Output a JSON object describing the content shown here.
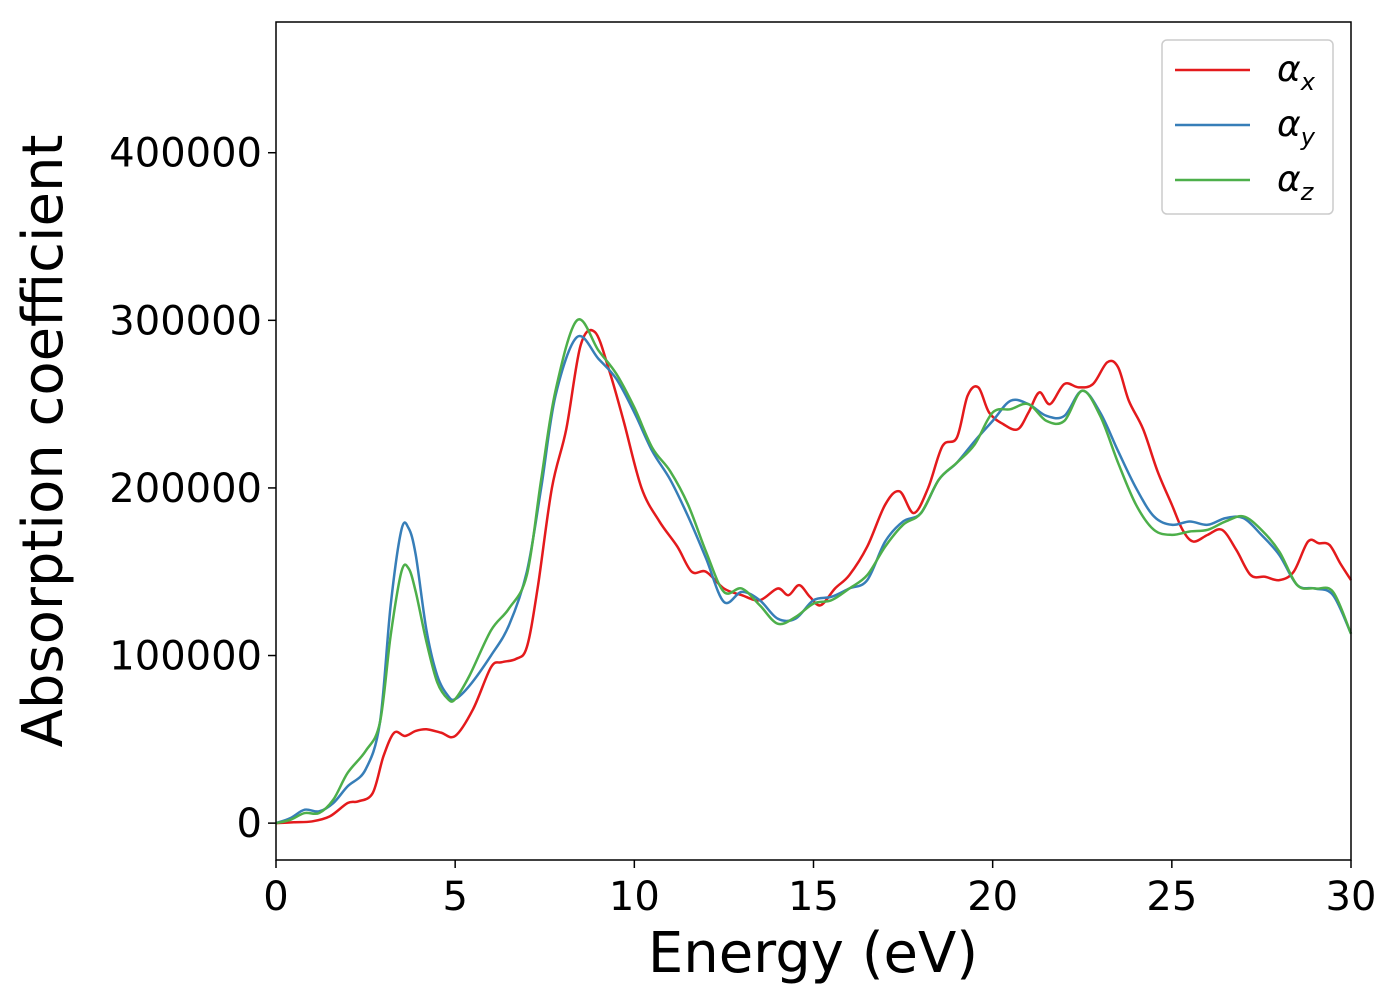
{
  "chart_data": {
    "type": "line",
    "xlabel": "Energy (eV)",
    "ylabel": "Absorption coefficient",
    "xlim": [
      0,
      30
    ],
    "ylim": [
      -22000,
      478000
    ],
    "xticks": [
      0,
      5,
      10,
      15,
      20,
      25,
      30
    ],
    "yticks": [
      0,
      100000,
      200000,
      300000,
      400000
    ],
    "grid": false,
    "legend_position": "top-right",
    "series": [
      {
        "name": "α",
        "subscript": "x",
        "color": "#e41a1c",
        "x": [
          0,
          0.5,
          1,
          1.5,
          2,
          2.3,
          2.7,
          3,
          3.3,
          3.6,
          3.9,
          4.2,
          4.6,
          5,
          5.5,
          6,
          6.3,
          6.7,
          7,
          7.3,
          7.7,
          8.1,
          8.5,
          8.9,
          9.3,
          9.7,
          10.2,
          10.7,
          11.2,
          11.6,
          12,
          12.5,
          13,
          13.5,
          14,
          14.3,
          14.6,
          14.9,
          15.2,
          15.6,
          16,
          16.5,
          17,
          17.4,
          17.8,
          18.2,
          18.6,
          19,
          19.3,
          19.6,
          19.9,
          20.3,
          20.7,
          21,
          21.3,
          21.6,
          22,
          22.4,
          22.8,
          23.2,
          23.5,
          23.8,
          24.2,
          24.6,
          25,
          25.3,
          25.6,
          26,
          26.4,
          26.8,
          27.2,
          27.6,
          28,
          28.4,
          28.8,
          29.1,
          29.4,
          29.7,
          30
        ],
        "y": [
          0,
          500,
          1000,
          4000,
          12000,
          13000,
          18000,
          40000,
          54000,
          52000,
          55000,
          56000,
          54000,
          52000,
          68000,
          93000,
          96000,
          98000,
          105000,
          140000,
          200000,
          235000,
          285000,
          293000,
          270000,
          240000,
          200000,
          180000,
          165000,
          150000,
          150000,
          140000,
          136000,
          133000,
          140000,
          136000,
          142000,
          135000,
          130000,
          140000,
          148000,
          165000,
          190000,
          198000,
          185000,
          200000,
          225000,
          230000,
          255000,
          260000,
          245000,
          238000,
          235000,
          245000,
          257000,
          250000,
          262000,
          260000,
          262000,
          275000,
          272000,
          252000,
          235000,
          210000,
          190000,
          175000,
          168000,
          172000,
          175000,
          163000,
          148000,
          147000,
          145000,
          150000,
          168000,
          167000,
          166000,
          155000,
          145000
        ]
      },
      {
        "name": "α",
        "subscript": "y",
        "color": "#377eb8",
        "x": [
          0,
          0.4,
          0.8,
          1.2,
          1.6,
          2,
          2.5,
          2.9,
          3.2,
          3.5,
          3.7,
          3.9,
          4.2,
          4.5,
          4.8,
          5,
          5.4,
          6,
          6.5,
          7,
          7.4,
          7.8,
          8.4,
          9,
          9.5,
          10,
          10.5,
          11,
          11.5,
          12,
          12.5,
          13,
          13.5,
          14,
          14.5,
          15,
          15.5,
          16,
          16.5,
          17,
          17.5,
          18,
          18.5,
          19,
          19.5,
          20,
          20.5,
          21,
          21.5,
          22,
          22.5,
          23,
          23.5,
          24,
          24.5,
          25,
          25.5,
          26,
          26.5,
          27,
          27.5,
          28,
          28.5,
          29,
          29.5,
          30
        ],
        "y": [
          0,
          3000,
          8000,
          7000,
          12000,
          22000,
          32000,
          60000,
          130000,
          175000,
          176000,
          160000,
          115000,
          88000,
          76000,
          74000,
          82000,
          100000,
          118000,
          150000,
          200000,
          255000,
          290000,
          277000,
          265000,
          245000,
          222000,
          205000,
          183000,
          158000,
          132000,
          138000,
          133000,
          122000,
          122000,
          133000,
          135000,
          140000,
          145000,
          168000,
          180000,
          185000,
          205000,
          215000,
          228000,
          240000,
          252000,
          250000,
          243000,
          243000,
          258000,
          245000,
          222000,
          200000,
          183000,
          178000,
          180000,
          178000,
          182000,
          182000,
          172000,
          160000,
          142000,
          140000,
          136000,
          113000
        ]
      },
      {
        "name": "α",
        "subscript": "z",
        "color": "#4daf4a",
        "x": [
          0,
          0.4,
          0.8,
          1.2,
          1.6,
          2,
          2.5,
          2.9,
          3.2,
          3.5,
          3.7,
          3.9,
          4.2,
          4.5,
          4.8,
          5,
          5.4,
          6,
          6.5,
          7,
          7.4,
          7.8,
          8.4,
          9,
          9.5,
          10,
          10.5,
          11,
          11.5,
          12,
          12.5,
          13,
          13.5,
          14,
          14.5,
          15,
          15.5,
          16,
          16.5,
          17,
          17.5,
          18,
          18.5,
          19,
          19.5,
          20,
          20.5,
          21,
          21.5,
          22,
          22.5,
          23,
          23.5,
          24,
          24.5,
          25,
          25.5,
          26,
          26.5,
          27,
          27.5,
          28,
          28.5,
          29,
          29.5,
          30
        ],
        "y": [
          0,
          2000,
          6000,
          6000,
          14000,
          30000,
          43000,
          60000,
          112000,
          150000,
          152000,
          138000,
          108000,
          84000,
          74000,
          74000,
          88000,
          115000,
          128000,
          148000,
          205000,
          258000,
          300000,
          282000,
          268000,
          248000,
          224000,
          210000,
          190000,
          162000,
          138000,
          140000,
          130000,
          119000,
          123000,
          131000,
          133000,
          140000,
          148000,
          165000,
          178000,
          185000,
          205000,
          215000,
          226000,
          245000,
          247000,
          250000,
          240000,
          240000,
          258000,
          243000,
          215000,
          190000,
          175000,
          172000,
          174000,
          175000,
          180000,
          183000,
          175000,
          162000,
          142000,
          140000,
          138000,
          113000
        ]
      }
    ]
  }
}
